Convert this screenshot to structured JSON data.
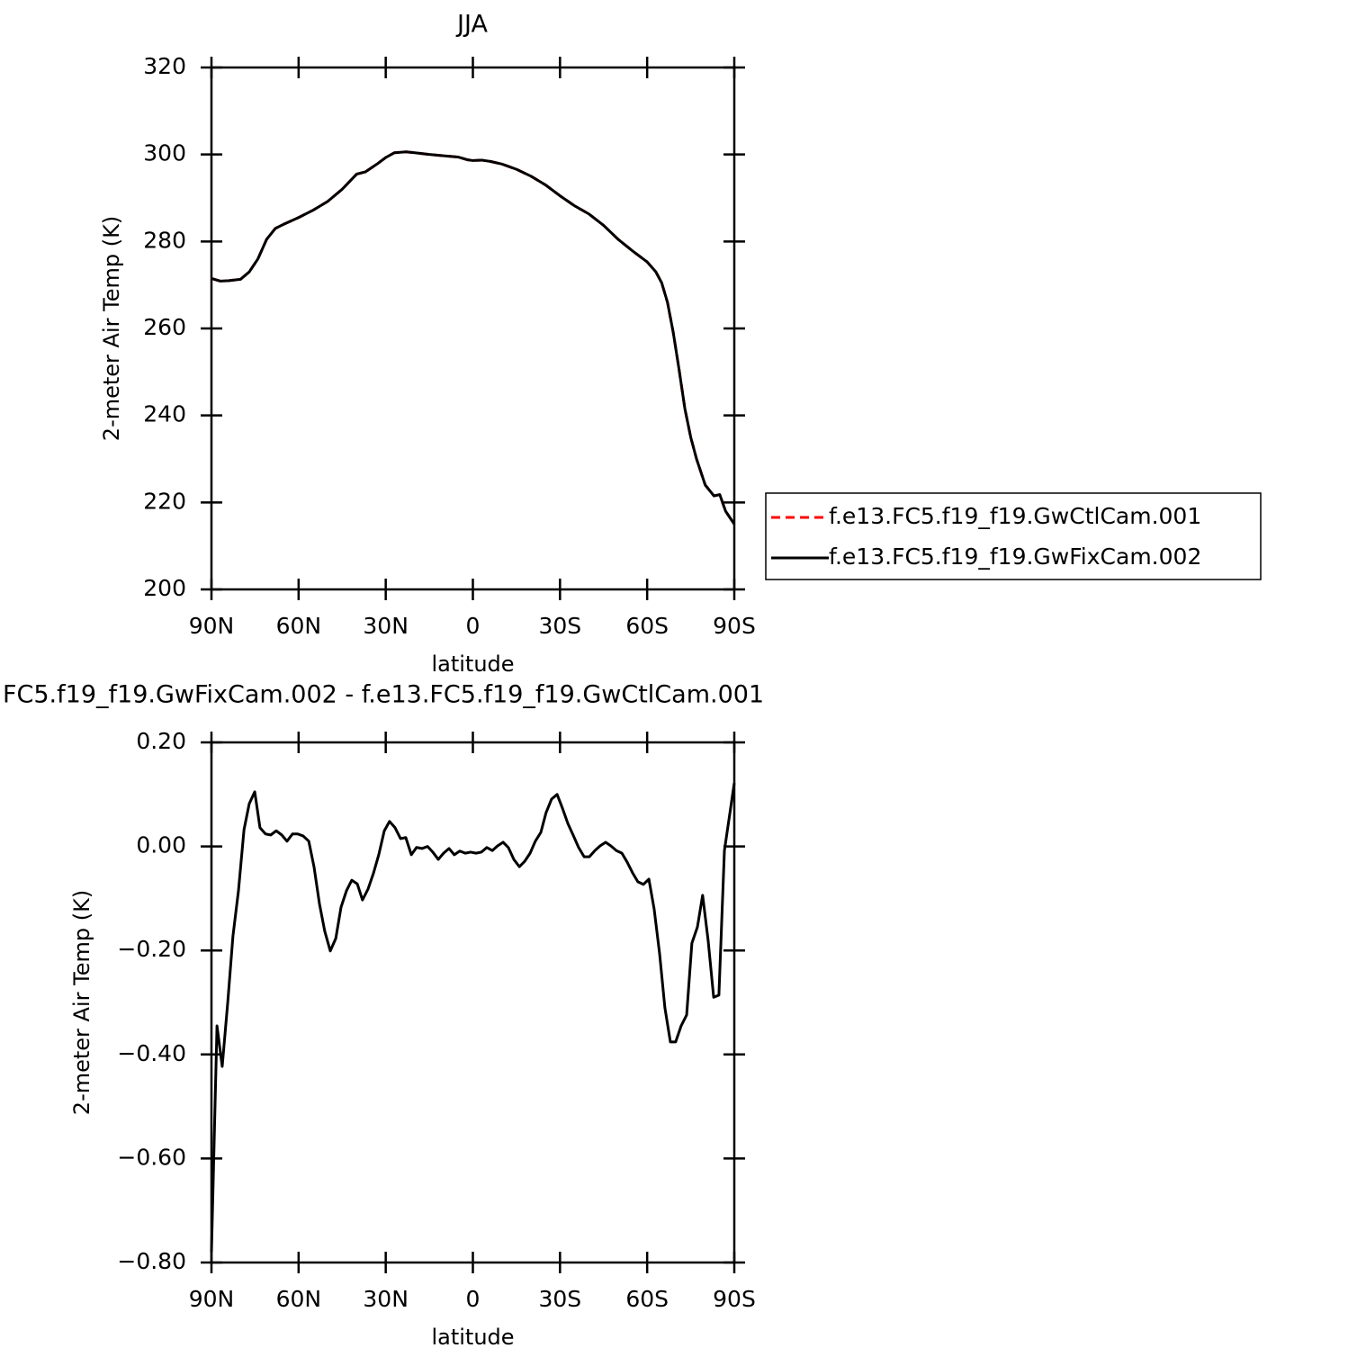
{
  "chart_data": [
    {
      "type": "line",
      "title": "JJA",
      "xlabel": "latitude",
      "ylabel": "2-meter Air Temp (K)",
      "xlim": [
        90,
        -90
      ],
      "ylim": [
        200,
        320
      ],
      "xticks": [
        {
          "value": 90,
          "label": "90N"
        },
        {
          "value": 60,
          "label": "60N"
        },
        {
          "value": 30,
          "label": "30N"
        },
        0,
        {
          "value": -30,
          "label": "30S"
        },
        {
          "value": -60,
          "label": "60S"
        },
        {
          "value": -90,
          "label": "90S"
        }
      ],
      "yticks": [
        200,
        220,
        240,
        260,
        280,
        300,
        320
      ],
      "legend": "right",
      "x": [
        90,
        87,
        84,
        80,
        77,
        74,
        71,
        68,
        65,
        60,
        55,
        50,
        45,
        40,
        37,
        33,
        30,
        27,
        23,
        20,
        15,
        10,
        5,
        2,
        0,
        -3,
        -6,
        -10,
        -15,
        -20,
        -25,
        -30,
        -35,
        -40,
        -45,
        -50,
        -55,
        -60,
        -63,
        -65,
        -67,
        -69,
        -71,
        -73,
        -75,
        -77,
        -80,
        -83,
        -85,
        -87,
        -90
      ],
      "series": [
        {
          "name": "f.e13.FC5.f19_f19.GwCtlCam.001",
          "color": "#ff0000",
          "dashed": true,
          "values": [
            271.5,
            270.9,
            271.0,
            271.3,
            273.0,
            276.0,
            280.5,
            283.0,
            284.0,
            285.5,
            287.2,
            289.2,
            292.0,
            295.5,
            296.0,
            297.8,
            299.3,
            300.4,
            300.6,
            300.4,
            300.0,
            299.7,
            299.4,
            298.8,
            298.6,
            298.7,
            298.4,
            297.8,
            296.6,
            295.0,
            293.0,
            290.5,
            288.2,
            286.3,
            283.7,
            280.5,
            277.8,
            275.3,
            273.0,
            270.5,
            266.0,
            259.0,
            250.5,
            241.5,
            235.0,
            230.0,
            224.0,
            221.5,
            221.8,
            218.0,
            215.0
          ]
        },
        {
          "name": "f.e13.FC5.f19_f19.GwFixCam.002",
          "color": "#000000",
          "dashed": false,
          "values": [
            271.5,
            270.9,
            271.0,
            271.3,
            273.0,
            276.0,
            280.5,
            283.0,
            284.0,
            285.5,
            287.2,
            289.2,
            292.0,
            295.5,
            296.0,
            297.8,
            299.3,
            300.4,
            300.6,
            300.4,
            300.0,
            299.7,
            299.4,
            298.8,
            298.6,
            298.7,
            298.4,
            297.8,
            296.6,
            295.0,
            293.0,
            290.5,
            288.2,
            286.3,
            283.7,
            280.5,
            277.8,
            275.3,
            273.0,
            270.5,
            266.0,
            259.0,
            250.5,
            241.5,
            235.0,
            230.0,
            224.0,
            221.5,
            221.8,
            218.0,
            215.0
          ]
        }
      ]
    },
    {
      "type": "line",
      "title": "FC5.f19_f19.GwFixCam.002 - f.e13.FC5.f19_f19.GwCtlCam.001",
      "xlabel": "latitude",
      "ylabel": "2-meter Air Temp (K)",
      "xlim": [
        90,
        -90
      ],
      "ylim": [
        -0.8,
        0.2
      ],
      "xticks": [
        {
          "value": 90,
          "label": "90N"
        },
        {
          "value": 60,
          "label": "60N"
        },
        {
          "value": 30,
          "label": "30N"
        },
        0,
        {
          "value": -30,
          "label": "30S"
        },
        {
          "value": -60,
          "label": "60S"
        },
        {
          "value": -90,
          "label": "90S"
        }
      ],
      "yticks": [
        {
          "value": -0.8,
          "label": "−0.80"
        },
        {
          "value": -0.6,
          "label": "−0.60"
        },
        {
          "value": -0.4,
          "label": "−0.40"
        },
        {
          "value": -0.2,
          "label": "−0.20"
        },
        {
          "value": 0,
          "label": "0.00"
        },
        {
          "value": 0.2,
          "label": "0.20"
        }
      ],
      "x": [
        90.0,
        88.1,
        86.3,
        84.4,
        82.6,
        80.7,
        78.8,
        77.0,
        75.1,
        73.3,
        71.4,
        69.6,
        67.7,
        65.8,
        64.0,
        62.1,
        60.3,
        58.4,
        56.5,
        54.7,
        52.8,
        51.0,
        49.1,
        47.2,
        45.4,
        43.5,
        41.7,
        39.8,
        38.0,
        36.1,
        34.2,
        32.4,
        30.5,
        28.7,
        26.8,
        24.9,
        23.1,
        21.2,
        19.4,
        17.5,
        15.6,
        13.8,
        11.9,
        10.1,
        8.2,
        6.4,
        4.5,
        2.6,
        0.8,
        -1.1,
        -2.9,
        -4.8,
        -6.7,
        -8.5,
        -10.4,
        -12.2,
        -14.1,
        -16.0,
        -17.8,
        -19.7,
        -21.5,
        -23.4,
        -25.2,
        -27.1,
        -29.0,
        -30.8,
        -32.7,
        -34.5,
        -36.4,
        -38.3,
        -40.1,
        -42.0,
        -43.8,
        -45.7,
        -47.5,
        -49.4,
        -51.3,
        -53.1,
        -55.0,
        -56.8,
        -58.7,
        -60.6,
        -62.4,
        -64.3,
        -66.1,
        -68.0,
        -69.8,
        -71.7,
        -73.6,
        -75.4,
        -77.3,
        -79.1,
        -81.0,
        -82.9,
        -84.7,
        -86.6,
        -90.0
      ],
      "series": [
        {
          "name": null,
          "color": "#000000",
          "dashed": false,
          "values": [
            -0.78,
            -0.345,
            -0.423,
            -0.3,
            -0.172,
            -0.085,
            0.032,
            0.082,
            0.105,
            0.036,
            0.024,
            0.022,
            0.03,
            0.022,
            0.01,
            0.024,
            0.024,
            0.02,
            0.01,
            -0.039,
            -0.111,
            -0.163,
            -0.201,
            -0.177,
            -0.117,
            -0.085,
            -0.065,
            -0.072,
            -0.103,
            -0.082,
            -0.051,
            -0.016,
            0.03,
            0.048,
            0.036,
            0.015,
            0.017,
            -0.016,
            -0.002,
            -0.004,
            0.0,
            -0.011,
            -0.025,
            -0.013,
            -0.004,
            -0.016,
            -0.009,
            -0.013,
            -0.011,
            -0.013,
            -0.011,
            -0.002,
            -0.008,
            0.001,
            0.008,
            -0.002,
            -0.025,
            -0.039,
            -0.029,
            -0.013,
            0.01,
            0.027,
            0.065,
            0.091,
            0.1,
            0.074,
            0.044,
            0.022,
            -0.002,
            -0.02,
            -0.02,
            -0.008,
            0.001,
            0.008,
            0.001,
            -0.008,
            -0.013,
            -0.03,
            -0.051,
            -0.068,
            -0.073,
            -0.063,
            -0.12,
            -0.207,
            -0.31,
            -0.376,
            -0.376,
            -0.345,
            -0.324,
            -0.186,
            -0.155,
            -0.094,
            -0.181,
            -0.29,
            -0.286,
            -0.008,
            0.122
          ]
        }
      ]
    }
  ]
}
